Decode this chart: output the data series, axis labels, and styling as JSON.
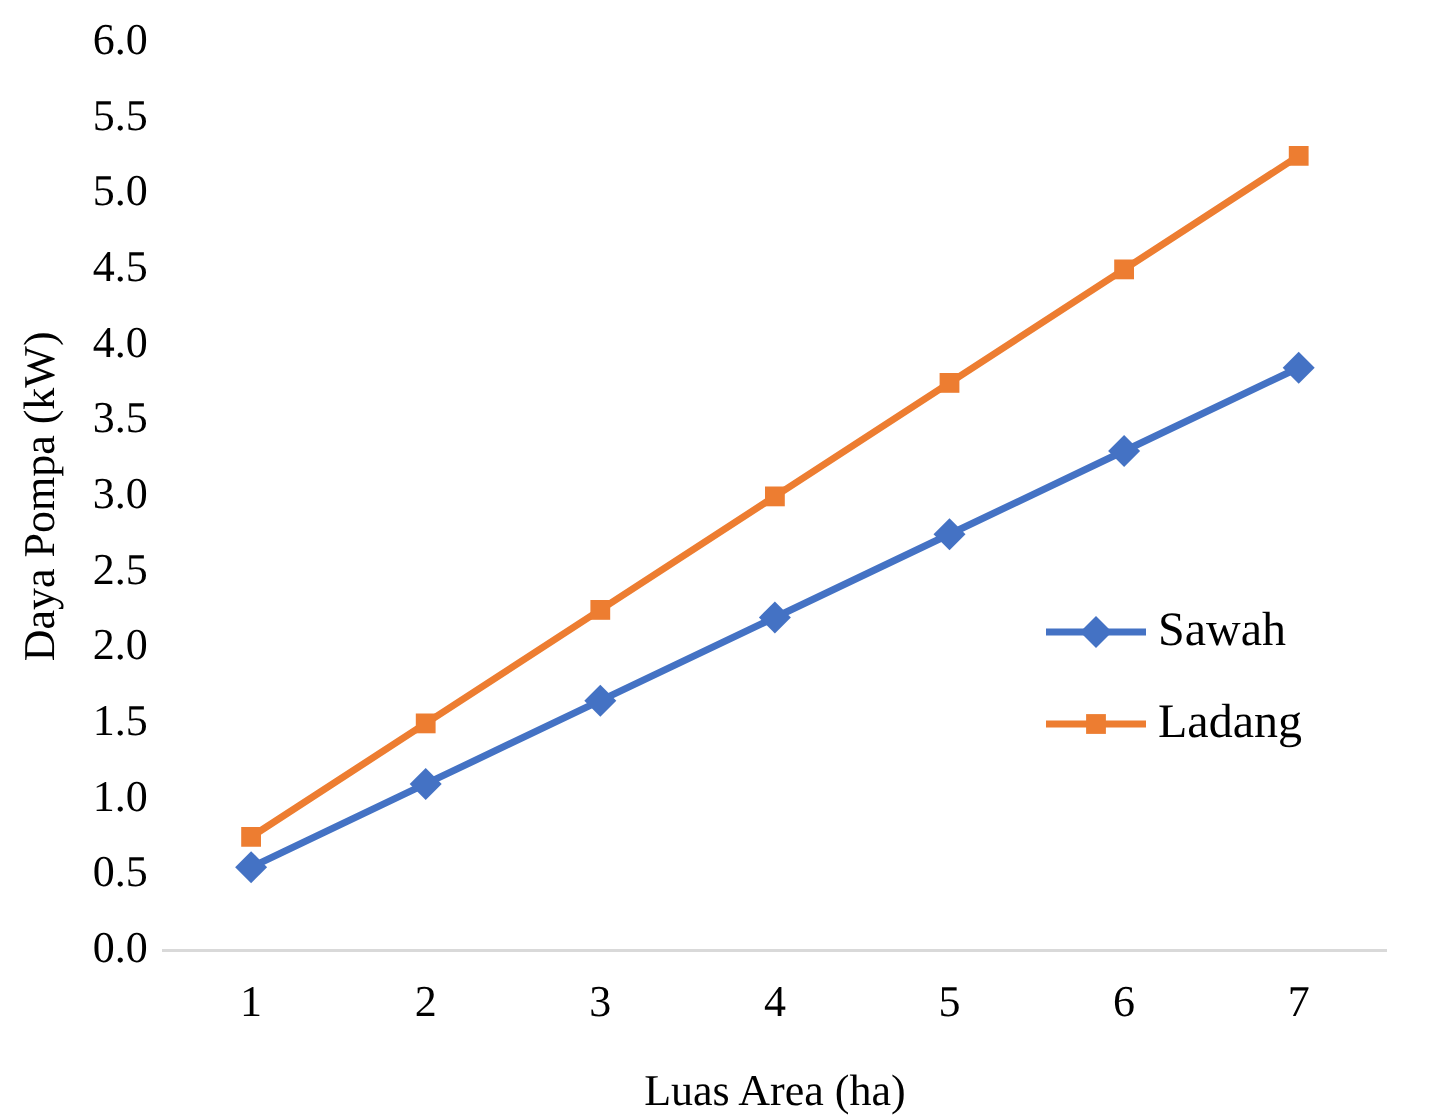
{
  "chart_data": {
    "type": "line",
    "xlabel": "Luas Area (ha)",
    "ylabel": "Daya Pompa (kW)",
    "categories": [
      "1",
      "2",
      "3",
      "4",
      "5",
      "6",
      "7"
    ],
    "series": [
      {
        "name": "Sawah",
        "color": "#4472c4",
        "marker": "diamond",
        "values": [
          0.55,
          1.1,
          1.65,
          2.2,
          2.75,
          3.3,
          3.85
        ]
      },
      {
        "name": "Ladang",
        "color": "#ed7d31",
        "marker": "square",
        "values": [
          0.75,
          1.5,
          2.25,
          3.0,
          3.75,
          4.5,
          5.25
        ]
      }
    ],
    "ylim": [
      0,
      6
    ],
    "yticks": [
      {
        "value": 0,
        "label": "0.0"
      },
      0.5,
      {
        "value": 1,
        "label": "1.0"
      },
      1.5,
      {
        "value": 2,
        "label": "2.0"
      },
      2.5,
      {
        "value": 3,
        "label": "3.0"
      },
      3.5,
      {
        "value": 4,
        "label": "4.0"
      },
      4.5,
      {
        "value": 5,
        "label": "5.0"
      },
      5.5,
      {
        "value": 6,
        "label": "6.0"
      }
    ],
    "grid": false,
    "legend": "right",
    "line_style": "solid"
  }
}
